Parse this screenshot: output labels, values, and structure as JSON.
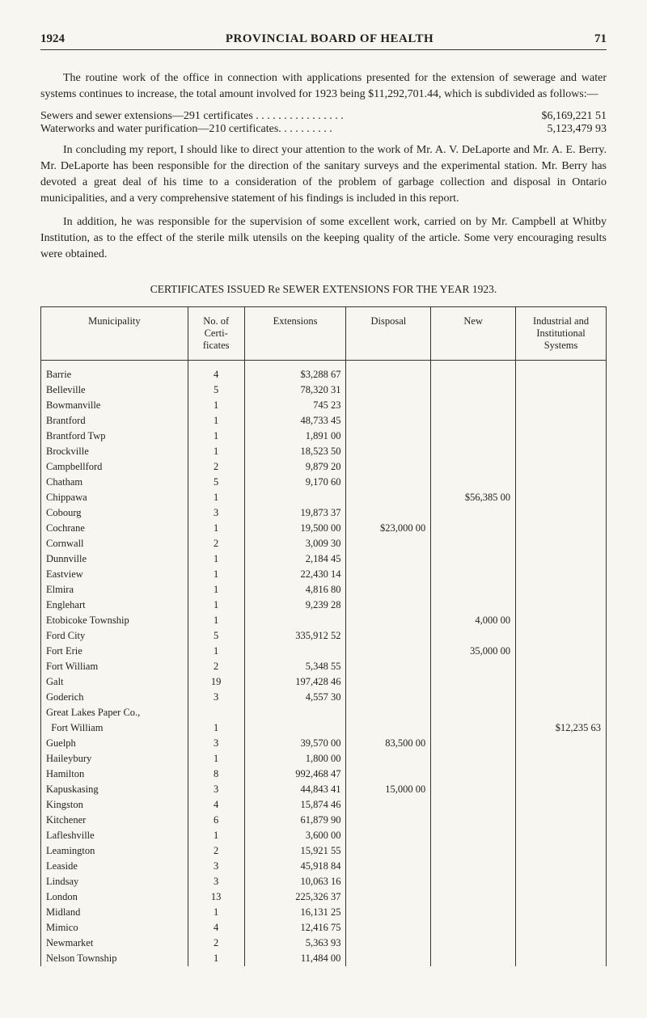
{
  "page": {
    "year": "1924",
    "title": "PROVINCIAL BOARD OF HEALTH",
    "pageno": "71"
  },
  "body": {
    "p1": "The routine work of the office in connection with applications presented for the extension of sewerage and water systems continues to increase, the total amount involved for 1923 being $11,292,701.44, which is subdivided as follows:—",
    "fin1_label": "Sewers and sewer extensions—291 certificates . . . . . . . . . . . . . . . .",
    "fin1_value": "$6,169,221  51",
    "fin2_label": "Waterworks and water purification—210 certificates. . . . . . . . . .",
    "fin2_value": "5,123,479  93",
    "p2": "In concluding my report, I should like to direct your attention to the work of Mr. A. V. DeLaporte and Mr. A. E. Berry.  Mr. DeLaporte has been respon­sible for the direction of the sanitary surveys and the experimental station.  Mr. Berry has devoted a great deal of his time to a consideration of the problem of garbage collection and disposal in Ontario municipalities, and a very compre­hensive statement of his findings is included in this report.",
    "p3": "In addition, he was responsible for the supervision of some excellent work, carried on by Mr. Campbell at Whitby Institution, as to the effect of the sterile milk utensils on the keeping quality of the article.  Some very encouraging results were obtained.",
    "caption": "CERTIFICATES ISSUED Re SEWER EXTENSIONS FOR THE YEAR 1923."
  },
  "table": {
    "headers": {
      "municipality": "Municipality",
      "no_cert": "No. of Certi­ficates",
      "extensions": "Extensions",
      "disposal": "Disposal",
      "new": "New",
      "industrial": "Industrial and Institutional Systems"
    },
    "rows": [
      {
        "m": "Barrie",
        "n": "4",
        "ext": "$3,288 67",
        "d": "",
        "new": "",
        "ind": ""
      },
      {
        "m": "Belleville",
        "n": "5",
        "ext": "78,320 31",
        "d": "",
        "new": "",
        "ind": ""
      },
      {
        "m": "Bowmanville",
        "n": "1",
        "ext": "745 23",
        "d": "",
        "new": "",
        "ind": ""
      },
      {
        "m": "Brantford",
        "n": "1",
        "ext": "48,733 45",
        "d": "",
        "new": "",
        "ind": ""
      },
      {
        "m": "Brantford Twp",
        "n": "1",
        "ext": "1,891 00",
        "d": "",
        "new": "",
        "ind": ""
      },
      {
        "m": "Brockville",
        "n": "1",
        "ext": "18,523 50",
        "d": "",
        "new": "",
        "ind": ""
      },
      {
        "m": "Campbellford",
        "n": "2",
        "ext": "9,879 20",
        "d": "",
        "new": "",
        "ind": ""
      },
      {
        "m": "Chatham",
        "n": "5",
        "ext": "9,170 60",
        "d": "",
        "new": "",
        "ind": ""
      },
      {
        "m": "Chippawa",
        "n": "1",
        "ext": "",
        "d": "",
        "new": "$56,385 00",
        "ind": ""
      },
      {
        "m": "Cobourg",
        "n": "3",
        "ext": "19,873 37",
        "d": "",
        "new": "",
        "ind": ""
      },
      {
        "m": "Cochrane",
        "n": "1",
        "ext": "19,500 00",
        "d": "$23,000 00",
        "new": "",
        "ind": ""
      },
      {
        "m": "Cornwall",
        "n": "2",
        "ext": "3,009 30",
        "d": "",
        "new": "",
        "ind": ""
      },
      {
        "m": "Dunnville",
        "n": "1",
        "ext": "2,184 45",
        "d": "",
        "new": "",
        "ind": ""
      },
      {
        "m": "Eastview",
        "n": "1",
        "ext": "22,430 14",
        "d": "",
        "new": "",
        "ind": ""
      },
      {
        "m": "Elmira",
        "n": "1",
        "ext": "4,816 80",
        "d": "",
        "new": "",
        "ind": ""
      },
      {
        "m": "Englehart",
        "n": "1",
        "ext": "9,239 28",
        "d": "",
        "new": "",
        "ind": ""
      },
      {
        "m": "Etobicoke Township",
        "n": "1",
        "ext": "",
        "d": "",
        "new": "4,000 00",
        "ind": ""
      },
      {
        "m": "Ford City",
        "n": "5",
        "ext": "335,912 52",
        "d": "",
        "new": "",
        "ind": ""
      },
      {
        "m": "Fort Erie",
        "n": "1",
        "ext": "",
        "d": "",
        "new": "35,000 00",
        "ind": ""
      },
      {
        "m": "Fort William",
        "n": "2",
        "ext": "5,348 55",
        "d": "",
        "new": "",
        "ind": ""
      },
      {
        "m": "Galt",
        "n": "19",
        "ext": "197,428 46",
        "d": "",
        "new": "",
        "ind": ""
      },
      {
        "m": "Goderich",
        "n": "3",
        "ext": "4,557 30",
        "d": "",
        "new": "",
        "ind": ""
      },
      {
        "m": "Great Lakes Paper Co.,",
        "n": "",
        "ext": "",
        "d": "",
        "new": "",
        "ind": ""
      },
      {
        "m": "  Fort William",
        "n": "1",
        "ext": "",
        "d": "",
        "new": "",
        "ind": "$12,235 63"
      },
      {
        "m": "Guelph",
        "n": "3",
        "ext": "39,570 00",
        "d": "83,500 00",
        "new": "",
        "ind": ""
      },
      {
        "m": "Haileybury",
        "n": "1",
        "ext": "1,800 00",
        "d": "",
        "new": "",
        "ind": ""
      },
      {
        "m": "Hamilton",
        "n": "8",
        "ext": "992,468 47",
        "d": "",
        "new": "",
        "ind": ""
      },
      {
        "m": "Kapuskasing",
        "n": "3",
        "ext": "44,843 41",
        "d": "15,000 00",
        "new": "",
        "ind": ""
      },
      {
        "m": "Kingston",
        "n": "4",
        "ext": "15,874 46",
        "d": "",
        "new": "",
        "ind": ""
      },
      {
        "m": "Kitchener",
        "n": "6",
        "ext": "61,879 90",
        "d": "",
        "new": "",
        "ind": ""
      },
      {
        "m": "Lafleshville",
        "n": "1",
        "ext": "3,600 00",
        "d": "",
        "new": "",
        "ind": ""
      },
      {
        "m": "Leamington",
        "n": "2",
        "ext": "15,921 55",
        "d": "",
        "new": "",
        "ind": ""
      },
      {
        "m": "Leaside",
        "n": "3",
        "ext": "45,918 84",
        "d": "",
        "new": "",
        "ind": ""
      },
      {
        "m": "Lindsay",
        "n": "3",
        "ext": "10,063 16",
        "d": "",
        "new": "",
        "ind": ""
      },
      {
        "m": "London",
        "n": "13",
        "ext": "225,326 37",
        "d": "",
        "new": "",
        "ind": ""
      },
      {
        "m": "Midland",
        "n": "1",
        "ext": "16,131 25",
        "d": "",
        "new": "",
        "ind": ""
      },
      {
        "m": "Mimico",
        "n": "4",
        "ext": "12,416 75",
        "d": "",
        "new": "",
        "ind": ""
      },
      {
        "m": "Newmarket",
        "n": "2",
        "ext": "5,363 93",
        "d": "",
        "new": "",
        "ind": ""
      },
      {
        "m": "Nelson Township",
        "n": "1",
        "ext": "11,484 00",
        "d": "",
        "new": "",
        "ind": ""
      }
    ]
  },
  "style": {
    "bg": "#f8f6f0",
    "text": "#222",
    "rule": "#333"
  }
}
